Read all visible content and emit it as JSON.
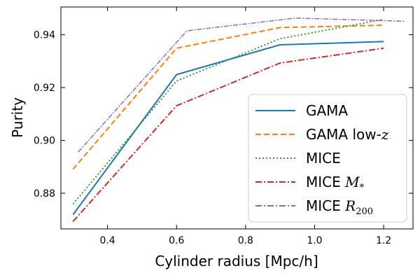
{
  "chart_data": {
    "type": "line",
    "title": "",
    "xlabel": "Cylinder radius [Mpc/h]",
    "ylabel": "Purity",
    "xlim": [
      0.265,
      1.285
    ],
    "ylim": [
      0.8665,
      0.9505
    ],
    "xticks": [
      0.4,
      0.6,
      0.8,
      1.0,
      1.2
    ],
    "yticks": [
      0.88,
      0.9,
      0.92,
      0.94
    ],
    "xtick_labels": [
      "0.4",
      "0.6",
      "0.8",
      "1.0",
      "1.2"
    ],
    "ytick_labels": [
      "0.88",
      "0.90",
      "0.92",
      "0.94"
    ],
    "grid": false,
    "legend_position": "lower-right",
    "series": [
      {
        "name": "GAMA",
        "label_text": "GAMA",
        "label_math": "",
        "color": "#1f77b4",
        "style": "solid",
        "x": [
          0.3,
          0.6,
          0.9,
          1.2
        ],
        "y": [
          0.8719,
          0.9249,
          0.9362,
          0.9374
        ]
      },
      {
        "name": "GAMA low-z",
        "label_text": "GAMA low-",
        "label_math": "z",
        "label_sub": "",
        "color": "#ff7f0e",
        "style": "dashed",
        "x": [
          0.3,
          0.6,
          0.9,
          1.2
        ],
        "y": [
          0.8891,
          0.9349,
          0.9427,
          0.9436
        ]
      },
      {
        "name": "MICE",
        "label_text": "MICE",
        "label_math": "",
        "color": "#2ca02c",
        "style": "dotted",
        "x": [
          0.3,
          0.6,
          0.9,
          1.2
        ],
        "y": [
          0.8759,
          0.9225,
          0.9385,
          0.9458
        ]
      },
      {
        "name": "MICE M*",
        "label_text": "MICE ",
        "label_math": "M",
        "label_sub": "*",
        "color": "#d62728",
        "style": "dashdot",
        "x": [
          0.3,
          0.6,
          0.9,
          1.2
        ],
        "y": [
          0.8693,
          0.9131,
          0.9293,
          0.9349
        ]
      },
      {
        "name": "MICE R200",
        "label_text": "MICE ",
        "label_math": "R",
        "label_sub": "200",
        "color": "#9467bd",
        "style": "dashdot",
        "x": [
          0.315,
          0.63,
          0.945,
          1.26
        ],
        "y": [
          0.8956,
          0.9415,
          0.9463,
          0.9451
        ]
      }
    ]
  }
}
